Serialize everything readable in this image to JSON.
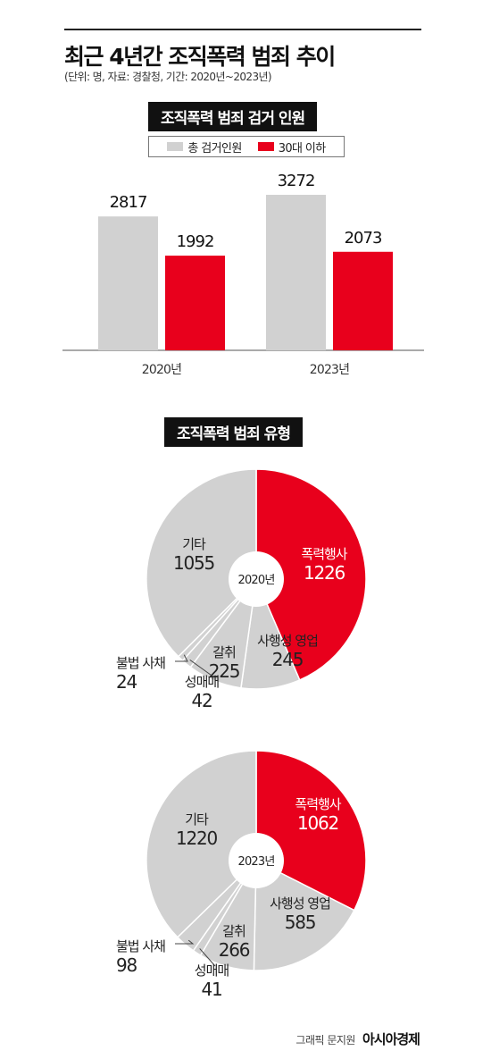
{
  "title": "최근 4년간 조직폭력 범죄 추이",
  "subtitle": "(단위: 명, 자료: 경찰청, 기간: 2020년~2023년)",
  "section1_label": "조직폭력 범죄 검거 인원",
  "section2_label": "조직폭력 범죄 유형",
  "credit": {
    "text": "그래픽 문지원",
    "brand": "아시아경제",
    "mark": "ᅵ"
  },
  "colors": {
    "gray": "#d1d1d1",
    "red": "#e8001c",
    "dark": "#111111"
  },
  "chart_data": [
    {
      "type": "bar",
      "categories": [
        "2020년",
        "2023년"
      ],
      "series": [
        {
          "name": "총 검거인원",
          "values": [
            2817,
            3272
          ],
          "color": "#d1d1d1"
        },
        {
          "name": "30대 이하",
          "values": [
            1992,
            2073
          ],
          "color": "#e8001c"
        }
      ],
      "ylim": [
        0,
        3272
      ],
      "legend": "top-center"
    },
    {
      "type": "pie",
      "center_label": "2020년",
      "slices": [
        {
          "label": "폭력행사",
          "value": 1226,
          "color": "#e8001c"
        },
        {
          "label": "사행성 영업",
          "value": 245,
          "color": "#d1d1d1"
        },
        {
          "label": "갈취",
          "value": 225,
          "color": "#d1d1d1"
        },
        {
          "label": "성매매",
          "value": 42,
          "color": "#d1d1d1"
        },
        {
          "label": "불법 사채",
          "value": 24,
          "color": "#d1d1d1"
        },
        {
          "label": "기타",
          "value": 1055,
          "color": "#d1d1d1"
        }
      ]
    },
    {
      "type": "pie",
      "center_label": "2023년",
      "slices": [
        {
          "label": "폭력행사",
          "value": 1062,
          "color": "#e8001c"
        },
        {
          "label": "사행성 영업",
          "value": 585,
          "color": "#d1d1d1"
        },
        {
          "label": "갈취",
          "value": 266,
          "color": "#d1d1d1"
        },
        {
          "label": "성매매",
          "value": 41,
          "color": "#d1d1d1"
        },
        {
          "label": "불법 사채",
          "value": 98,
          "color": "#d1d1d1"
        },
        {
          "label": "기타",
          "value": 1220,
          "color": "#d1d1d1"
        }
      ]
    }
  ]
}
